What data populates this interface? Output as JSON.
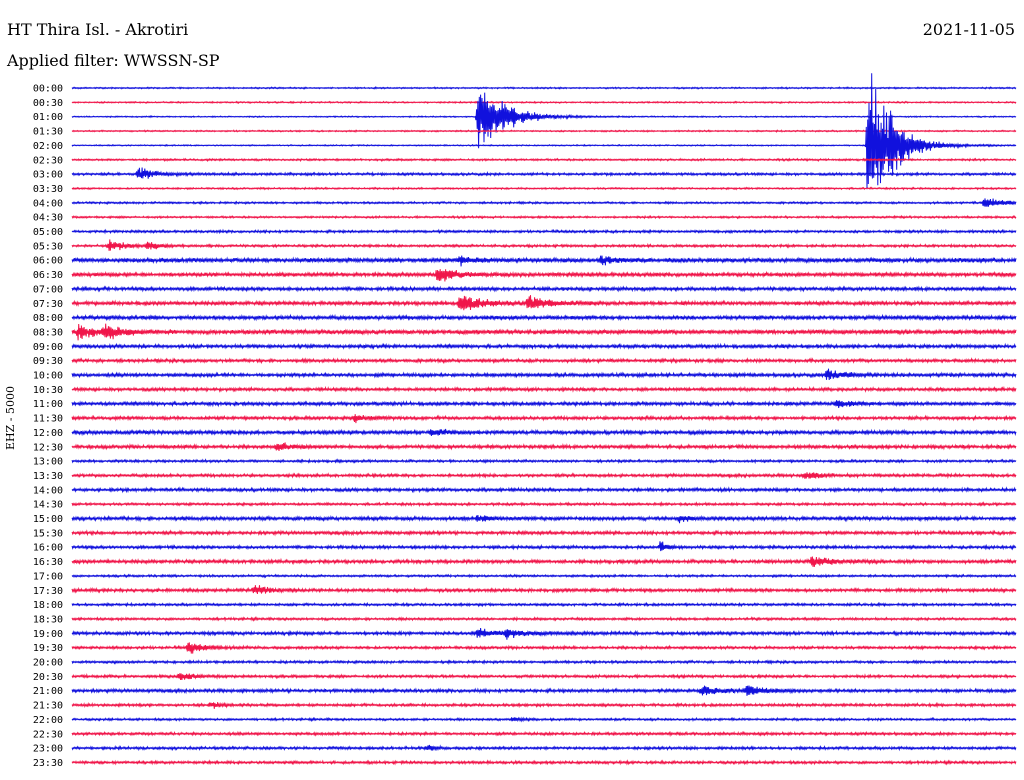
{
  "header": {
    "station": "HT Thira Isl. - Akrotiri",
    "date": "2021-11-05",
    "filter": "Applied filter: WWSSN-SP"
  },
  "chart_data": {
    "type": "line",
    "ylabel": "EHZ - 5000",
    "colors": {
      "blue": "#1111dd",
      "red": "#f0164a"
    },
    "rows": [
      "00:00",
      "00:30",
      "01:00",
      "01:30",
      "02:00",
      "02:30",
      "03:00",
      "03:30",
      "04:00",
      "04:30",
      "05:00",
      "05:30",
      "06:00",
      "06:30",
      "07:00",
      "07:30",
      "08:00",
      "08:30",
      "09:00",
      "09:30",
      "10:00",
      "10:30",
      "11:00",
      "11:30",
      "12:00",
      "12:30",
      "13:00",
      "13:30",
      "14:00",
      "14:30",
      "15:00",
      "15:30",
      "16:00",
      "16:30",
      "17:00",
      "17:30",
      "18:00",
      "18:30",
      "19:00",
      "19:30",
      "20:00",
      "20:30",
      "21:00",
      "21:30",
      "22:00",
      "22:30",
      "23:00",
      "23:30"
    ],
    "row_minutes": 30,
    "series_order": [
      "blue",
      "red"
    ],
    "noise": [
      0.6,
      0.6,
      0.5,
      0.6,
      0.5,
      0.8,
      1.0,
      0.7,
      0.8,
      0.8,
      1.0,
      1.0,
      1.8,
      1.6,
      1.4,
      1.5,
      1.6,
      1.8,
      1.4,
      1.3,
      1.4,
      1.3,
      1.4,
      1.3,
      1.5,
      1.4,
      1.0,
      1.2,
      1.3,
      1.0,
      1.5,
      1.3,
      1.2,
      1.4,
      0.9,
      1.3,
      1.0,
      1.0,
      1.3,
      1.1,
      1.0,
      1.1,
      1.3,
      1.1,
      0.9,
      1.1,
      1.1,
      1.1
    ],
    "events": [
      {
        "row": 2,
        "minute": 12.9,
        "amp": 48,
        "decay": 1.4
      },
      {
        "row": 4,
        "minute": 25.3,
        "amp": 96,
        "decay": 1.3
      },
      {
        "row": 6,
        "minute": 2.1,
        "amp": 8,
        "decay": 0.9
      },
      {
        "row": 8,
        "minute": 29.0,
        "amp": 8,
        "decay": 1.0
      },
      {
        "row": 11,
        "minute": 1.2,
        "amp": 7,
        "decay": 0.8
      },
      {
        "row": 11,
        "minute": 2.4,
        "amp": 5,
        "decay": 0.6
      },
      {
        "row": 12,
        "minute": 12.3,
        "amp": 5,
        "decay": 0.8
      },
      {
        "row": 12,
        "minute": 16.8,
        "amp": 5,
        "decay": 0.8
      },
      {
        "row": 13,
        "minute": 11.6,
        "amp": 9,
        "decay": 1.0
      },
      {
        "row": 15,
        "minute": 12.3,
        "amp": 11,
        "decay": 1.2
      },
      {
        "row": 15,
        "minute": 14.5,
        "amp": 9,
        "decay": 1.2
      },
      {
        "row": 17,
        "minute": 0.2,
        "amp": 8,
        "decay": 1.0
      },
      {
        "row": 17,
        "minute": 1.0,
        "amp": 8,
        "decay": 1.0
      },
      {
        "row": 20,
        "minute": 24.0,
        "amp": 7,
        "decay": 1.0
      },
      {
        "row": 22,
        "minute": 24.3,
        "amp": 6,
        "decay": 0.8
      },
      {
        "row": 23,
        "minute": 9.0,
        "amp": 5,
        "decay": 0.7
      },
      {
        "row": 24,
        "minute": 11.4,
        "amp": 5,
        "decay": 0.8
      },
      {
        "row": 25,
        "minute": 6.5,
        "amp": 5,
        "decay": 0.8
      },
      {
        "row": 27,
        "minute": 23.3,
        "amp": 5,
        "decay": 0.8
      },
      {
        "row": 30,
        "minute": 12.9,
        "amp": 4,
        "decay": 0.7
      },
      {
        "row": 30,
        "minute": 19.3,
        "amp": 4,
        "decay": 0.7
      },
      {
        "row": 32,
        "minute": 18.7,
        "amp": 9,
        "decay": 0.3
      },
      {
        "row": 33,
        "minute": 23.5,
        "amp": 8,
        "decay": 1.0
      },
      {
        "row": 35,
        "minute": 5.8,
        "amp": 6,
        "decay": 0.8
      },
      {
        "row": 38,
        "minute": 12.9,
        "amp": 6,
        "decay": 1.0
      },
      {
        "row": 38,
        "minute": 13.8,
        "amp": 5,
        "decay": 1.0
      },
      {
        "row": 39,
        "minute": 3.7,
        "amp": 8,
        "decay": 0.8
      },
      {
        "row": 41,
        "minute": 3.4,
        "amp": 6,
        "decay": 0.7
      },
      {
        "row": 42,
        "minute": 20.0,
        "amp": 6,
        "decay": 1.0
      },
      {
        "row": 42,
        "minute": 21.4,
        "amp": 6,
        "decay": 1.0
      },
      {
        "row": 43,
        "minute": 4.4,
        "amp": 4,
        "decay": 0.5
      },
      {
        "row": 44,
        "minute": 14.0,
        "amp": 3,
        "decay": 0.5
      },
      {
        "row": 46,
        "minute": 11.3,
        "amp": 4,
        "decay": 0.4
      }
    ]
  }
}
